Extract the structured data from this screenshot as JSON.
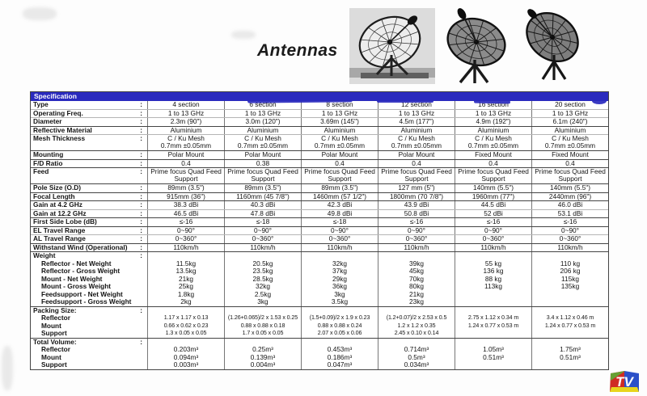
{
  "title": "Antennas",
  "colors": {
    "header_blue": "#2a2abe",
    "logo_red": "#cf2b24",
    "logo_green": "#66a033",
    "logo_blue": "#2b50c8",
    "logo_yellow": "#e8d51c"
  },
  "logo": {
    "text": "TV"
  },
  "table": {
    "header_label": "Specification",
    "rows": [
      {
        "label": "Type",
        "colon": ":",
        "sep": "none",
        "values": [
          "4 section",
          "6 section",
          "8 section",
          "12 section",
          "16 section",
          "20 section"
        ]
      },
      {
        "label": "Operating Freq.",
        "colon": ":",
        "sep": "light",
        "values": [
          "1 to 13 GHz",
          "1 to 13 GHz",
          "1 to 13 GHz",
          "1 to 13 GHz",
          "1 to 13 GHz",
          "1 to 13 GHz"
        ]
      },
      {
        "label": "Diameter",
        "colon": ":",
        "sep": "light",
        "values": [
          "2.3m (90\")",
          "3.0m (120\")",
          "3.69m (145\")",
          "4.5m (177\")",
          "4.9m (192\")",
          "6.1m (240\")"
        ]
      },
      {
        "label": "Reflective Material",
        "colon": ":",
        "sep": "dark",
        "values": [
          "Aluminium",
          "Aluminium",
          "Aluminium",
          "Aluminium",
          "Aluminium",
          "Aluminium"
        ]
      },
      {
        "label": "Mesh Thickness",
        "colon": ":",
        "sep": "light",
        "two": true,
        "values": [
          "C / Ku Mesh\n0.7mm ±0.05mm",
          "C / Ku Mesh\n0.7mm ±0.05mm",
          "C / Ku Mesh\n0.7mm ±0.05mm",
          "C / Ku Mesh\n0.7mm ±0.05mm",
          "C / Ku Mesh\n0.7mm ±0.05mm",
          "C / Ku Mesh\n0.7mm ±0.05mm"
        ]
      },
      {
        "label": "Mounting",
        "colon": ":",
        "sep": "dark",
        "values": [
          "Polar Mount",
          "Polar Mount",
          "Polar Mount",
          "Polar Mount",
          "Fixed Mount",
          "Fixed Mount"
        ]
      },
      {
        "label": "F/D Ratio",
        "colon": ":",
        "sep": "dark",
        "values": [
          "0.4",
          "0.38",
          "0.4",
          "0.4",
          "0.4",
          "0.4"
        ]
      },
      {
        "label": "Feed",
        "colon": ":",
        "sep": "dark",
        "two": true,
        "values": [
          "Prime focus Quad Feed\nSupport",
          "Prime focus Quad Feed\nSupport",
          "Prime focus Quad Feed\nSupport",
          "Prime focus Quad Feed\nSupport",
          "Prime focus Quad Feed\nSupport",
          "Prime focus Quad Feed\nSupport"
        ]
      },
      {
        "label": "Pole Size (O.D)",
        "colon": ":",
        "sep": "dark",
        "values": [
          "89mm (3.5\")",
          "89mm (3.5\")",
          "89mm (3.5\")",
          "127 mm (5\")",
          "140mm (5.5\")",
          "140mm (5.5\")"
        ]
      },
      {
        "label": "Focal Length",
        "colon": ":",
        "sep": "dark",
        "values": [
          "915mm (36\")",
          "1160mm (45 7/8\")",
          "1460mm (57 1/2\")",
          "1800mm (70 7/8\")",
          "1960mm (77\")",
          "2440mm (96\")"
        ]
      },
      {
        "label": "Gain at 4.2 GHz",
        "colon": ":",
        "sep": "dark",
        "values": [
          "38.3 dBi",
          "40.3 dBi",
          "42.3 dBi",
          "43.9 dBi",
          "44.5 dBi",
          "46.0 dBi"
        ]
      },
      {
        "label": "Gain at 12.2 GHz",
        "colon": ":",
        "sep": "light",
        "values": [
          "46.5 dBi",
          "47.8 dBi",
          "49.8 dBi",
          "50.8 dBi",
          "52 dBi",
          "53.1 dBi"
        ]
      },
      {
        "label": "First Side Lobe (dB)",
        "colon": ":",
        "sep": "dark",
        "values": [
          "≤-16",
          "≤-18",
          "≤-18",
          "≤-16",
          "≤-16",
          "≤-16"
        ]
      },
      {
        "label": "EL Travel Range",
        "colon": ":",
        "sep": "dark",
        "values": [
          "0~90°",
          "0~90°",
          "0~90°",
          "0~90°",
          "0~90°",
          "0~90°"
        ]
      },
      {
        "label": "AL Travel Range",
        "colon": ":",
        "sep": "light",
        "values": [
          "0~360°",
          "0~360°",
          "0~360°",
          "0~360°",
          "0~360°",
          "0~360°"
        ]
      },
      {
        "label": "Withstand Wind (Operational)",
        "colon": ":",
        "sep": "dark",
        "values": [
          "110km/h",
          "110km/h",
          "110km/h",
          "110km/h",
          "110km/h",
          "110km/h"
        ]
      },
      {
        "label": "Weight",
        "colon": ":",
        "sep": "dark",
        "values": [
          "",
          "",
          "",
          "",
          "",
          ""
        ]
      },
      {
        "label": "Reflector - Net Weight",
        "indent": true,
        "sep": "none",
        "values": [
          "11.5kg",
          "20.5kg",
          "32kg",
          "39kg",
          "55 kg",
          "110 kg"
        ]
      },
      {
        "label": "Reflector - Gross Weight",
        "indent": true,
        "sep": "none",
        "values": [
          "13.5kg",
          "23.5kg",
          "37kg",
          "45kg",
          "136 kg",
          "206 kg"
        ]
      },
      {
        "label": "Mount - Net Weight",
        "indent": true,
        "sep": "none",
        "values": [
          "21kg",
          "28.5kg",
          "29kg",
          "70kg",
          "88 kg",
          "115kg"
        ]
      },
      {
        "label": "Mount - Gross Weight",
        "indent": true,
        "sep": "none",
        "values": [
          "25kg",
          "32kg",
          "36kg",
          "80kg",
          "113kg",
          "135kg"
        ]
      },
      {
        "label": "Feedsupport - Net Weight",
        "indent": true,
        "sep": "none",
        "values": [
          "1.8kg",
          "2.5kg",
          "3kg",
          "21kg",
          "",
          ""
        ]
      },
      {
        "label": "Feedsupport - Gross Weight",
        "indent": true,
        "sep": "none",
        "values": [
          "2kg",
          "3kg",
          "3.5kg",
          "23kg",
          "",
          ""
        ]
      },
      {
        "label": "Packing Size:",
        "colon": ":",
        "sep": "dark",
        "values": [
          "",
          "",
          "",
          "",
          "",
          ""
        ]
      },
      {
        "label": "Reflector",
        "indent": true,
        "sep": "none",
        "small": true,
        "values": [
          "1.17 x 1.17 x 0.13",
          "(1.26+0.065)/2 x 1.53 x 0.25",
          "(1.5+0.09)/2 x 1.9 x 0.23",
          "(1.2+0.07)/2 x 2.53 x 0.5",
          "2.75 x 1.12 x 0.34 m",
          "3.4 x 1.12 x 0.46 m"
        ]
      },
      {
        "label": "Mount",
        "indent": true,
        "sep": "none",
        "small": true,
        "values": [
          "0.66 x 0.62 x 0.23",
          "0.88 x 0.88 x 0.18",
          "0.88 x 0.88 x 0.24",
          "1.2 x 1.2 x 0.35",
          "1.24 x 0.77 x 0.53 m",
          "1.24 x 0.77 x 0.53 m"
        ]
      },
      {
        "label": "Support",
        "indent": true,
        "sep": "none",
        "small": true,
        "values": [
          "1.3 x 0.05 x 0.05",
          "1.7 x 0.05 x 0.05",
          "2.07 x 0.05 x 0.06",
          "2.45 x 0.10 x 0.14",
          "",
          ""
        ]
      },
      {
        "label": "Total Volume:",
        "colon": ":",
        "sep": "dark",
        "values": [
          "",
          "",
          "",
          "",
          "",
          ""
        ]
      },
      {
        "label": "Reflector",
        "indent": true,
        "sep": "none",
        "values": [
          "0.203m³",
          "0.25m³",
          "0.453m³",
          "0.714m³",
          "1.05m³",
          "1.75m³"
        ]
      },
      {
        "label": "Mount",
        "indent": true,
        "sep": "none",
        "values": [
          "0.094m³",
          "0.139m³",
          "0.186m³",
          "0.5m³",
          "0.51m³",
          "0.51m³"
        ]
      },
      {
        "label": "Support",
        "indent": true,
        "sep": "none",
        "values": [
          "0.003m³",
          "0.004m³",
          "0.047m³",
          "0.034m³",
          "",
          ""
        ]
      }
    ]
  }
}
